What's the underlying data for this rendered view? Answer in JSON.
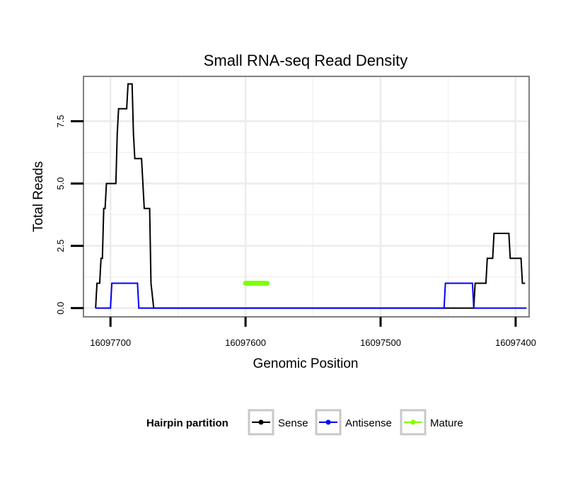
{
  "chart_data": {
    "type": "line",
    "title": "Small RNA-seq Read Density",
    "xlabel": "Genomic Position",
    "ylabel": "Total Reads",
    "x_reversed": true,
    "xlim": [
      16097720,
      16097390
    ],
    "ylim": [
      -0.35,
      9.3
    ],
    "x_ticks": [
      16097700,
      16097600,
      16097500,
      16097400
    ],
    "x_tick_labels": [
      "16097700",
      "16097600",
      "16097500",
      "16097400"
    ],
    "y_ticks": [
      0,
      2.5,
      5,
      7.5
    ],
    "y_tick_labels": [
      "0.0",
      "2.5",
      "5.0",
      "7.5"
    ],
    "grid": true,
    "legend": {
      "title": "Hairpin partition",
      "position": "bottom"
    },
    "series": [
      {
        "name": "Sense",
        "color": "#000000",
        "points": [
          [
            16097711,
            0
          ],
          [
            16097710,
            1
          ],
          [
            16097708,
            1
          ],
          [
            16097707,
            2
          ],
          [
            16097706,
            2
          ],
          [
            16097705,
            4
          ],
          [
            16097704,
            4
          ],
          [
            16097703,
            5
          ],
          [
            16097696,
            5
          ],
          [
            16097695,
            7
          ],
          [
            16097694,
            8
          ],
          [
            16097688,
            8
          ],
          [
            16097687,
            9
          ],
          [
            16097684,
            9
          ],
          [
            16097683,
            7
          ],
          [
            16097682,
            6
          ],
          [
            16097677,
            6
          ],
          [
            16097676,
            5
          ],
          [
            16097675,
            4
          ],
          [
            16097671,
            4
          ],
          [
            16097670,
            1
          ],
          [
            16097668,
            0
          ],
          [
            16097431,
            0
          ],
          [
            16097430,
            1
          ],
          [
            16097422,
            1
          ],
          [
            16097421,
            2
          ],
          [
            16097417,
            2
          ],
          [
            16097416,
            3
          ],
          [
            16097405,
            3
          ],
          [
            16097404,
            2
          ],
          [
            16097396,
            2
          ],
          [
            16097395,
            1
          ],
          [
            16097393,
            1
          ]
        ]
      },
      {
        "name": "Antisense",
        "color": "#0000ff",
        "points": [
          [
            16097711,
            0
          ],
          [
            16097700,
            0
          ],
          [
            16097699,
            1
          ],
          [
            16097680,
            1
          ],
          [
            16097679,
            0
          ],
          [
            16097453,
            0
          ],
          [
            16097452,
            1
          ],
          [
            16097432,
            1
          ],
          [
            16097431,
            0
          ],
          [
            16097392,
            0
          ]
        ]
      },
      {
        "name": "Mature",
        "color": "#7fff00",
        "points": [
          [
            16097600,
            1
          ],
          [
            16097584,
            1
          ]
        ]
      }
    ]
  }
}
